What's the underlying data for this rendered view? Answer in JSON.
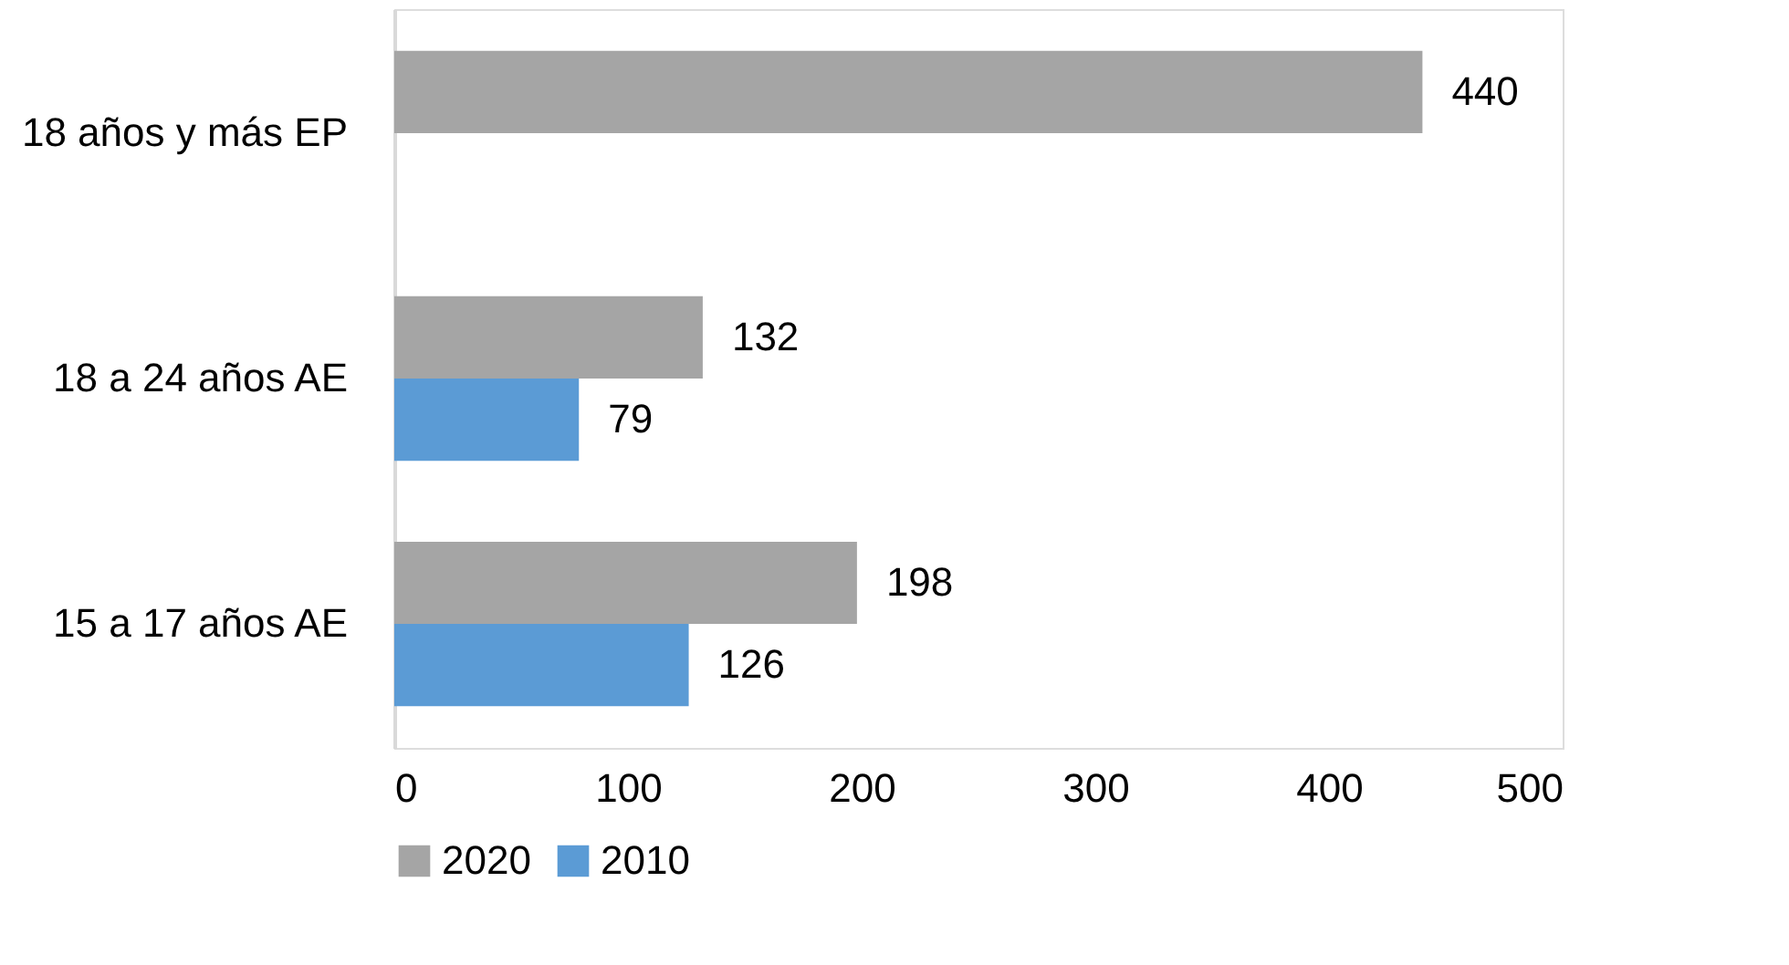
{
  "chart_data": {
    "type": "bar",
    "orientation": "horizontal",
    "categories": [
      "18 años y más  EP",
      "18 a 24 años AE",
      "15 a 17 años AE"
    ],
    "series": [
      {
        "name": "2020",
        "color": "#a5a5a5",
        "values": [
          440,
          132,
          198
        ]
      },
      {
        "name": "2010",
        "color": "#5b9bd5",
        "values": [
          null,
          79,
          126
        ]
      }
    ],
    "xlim": [
      0,
      500
    ],
    "xticks": [
      0,
      100,
      200,
      300,
      400,
      500
    ],
    "grid": false,
    "legend": "bottom",
    "data_labels": true
  }
}
